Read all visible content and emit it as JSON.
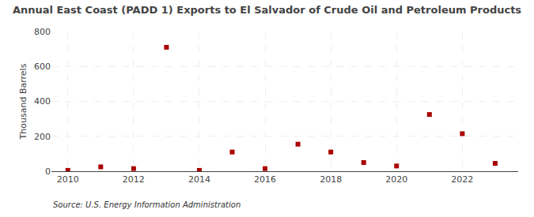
{
  "chart_data": {
    "type": "scatter",
    "title": "Annual East Coast (PADD 1) Exports to El Salvador of Crude Oil and Petroleum Products",
    "ylabel": "Thousand Barrels",
    "annotations": [
      "Source: U.S. Energy Information Administration"
    ],
    "x": [
      2010,
      2011,
      2012,
      2013,
      2014,
      2015,
      2016,
      2017,
      2018,
      2019,
      2020,
      2021,
      2022,
      2023
    ],
    "values": [
      5,
      25,
      15,
      710,
      5,
      110,
      15,
      155,
      110,
      50,
      30,
      325,
      215,
      45
    ],
    "color": "#aa0000",
    "marker": "square",
    "xlim": [
      2009.5,
      2023.7
    ],
    "xticks": [
      2010,
      2012,
      2014,
      2016,
      2018,
      2020,
      2022
    ],
    "ylim": [
      0,
      800
    ],
    "yticks": [
      0,
      200,
      400,
      600,
      800
    ],
    "grid": true
  }
}
